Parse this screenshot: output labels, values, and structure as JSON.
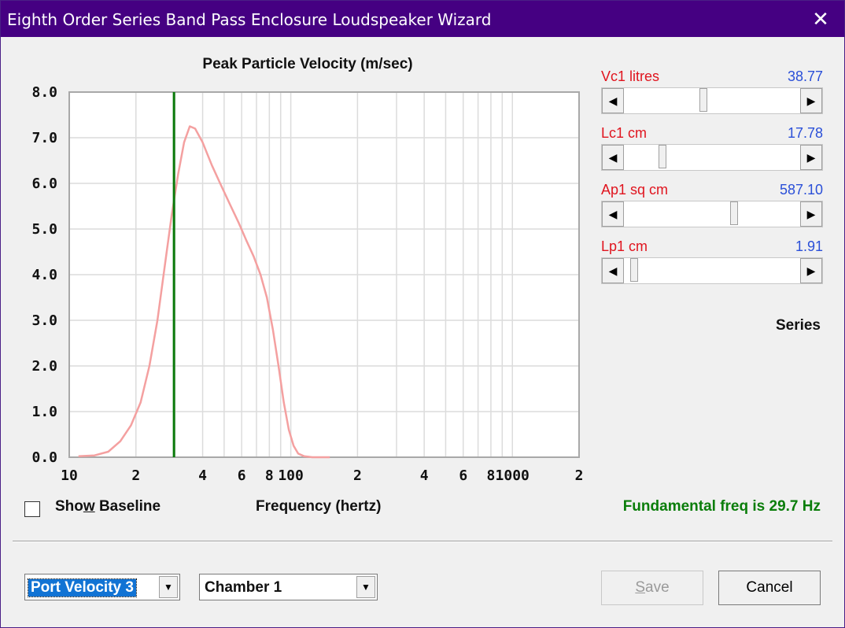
{
  "window": {
    "title": "Eighth Order Series Band Pass Enclosure Loudspeaker Wizard",
    "close_glyph": "✕"
  },
  "chart_data": {
    "type": "line",
    "title": "Peak Particle Velocity (m/sec)",
    "xlabel": "Frequency (hertz)",
    "ylabel": "",
    "x_scale": "log",
    "xlim": [
      10,
      2000
    ],
    "ylim": [
      0,
      8
    ],
    "y_ticks": [
      "0.0",
      "1.0",
      "2.0",
      "3.0",
      "4.0",
      "5.0",
      "6.0",
      "7.0",
      "8.0"
    ],
    "x_ticks": [
      {
        "value": 10,
        "label": "10"
      },
      {
        "value": 20,
        "label": "2"
      },
      {
        "value": 40,
        "label": "4"
      },
      {
        "value": 60,
        "label": "6"
      },
      {
        "value": 80,
        "label": "8"
      },
      {
        "value": 100,
        "label": "100"
      },
      {
        "value": 200,
        "label": "2"
      },
      {
        "value": 400,
        "label": "4"
      },
      {
        "value": 600,
        "label": "6"
      },
      {
        "value": 800,
        "label": "8"
      },
      {
        "value": 1000,
        "label": "1000"
      },
      {
        "value": 2000,
        "label": "2"
      }
    ],
    "grid": true,
    "marker_line": {
      "x": 29.7,
      "color": "#0a7a0a"
    },
    "series": [
      {
        "color": "#f4a0a0",
        "points": [
          [
            11,
            0.02
          ],
          [
            13,
            0.04
          ],
          [
            15,
            0.12
          ],
          [
            17,
            0.35
          ],
          [
            19,
            0.7
          ],
          [
            21,
            1.2
          ],
          [
            23,
            2.0
          ],
          [
            25,
            3.0
          ],
          [
            27,
            4.2
          ],
          [
            29,
            5.3
          ],
          [
            31,
            6.2
          ],
          [
            33,
            6.9
          ],
          [
            35,
            7.25
          ],
          [
            37,
            7.2
          ],
          [
            40,
            6.9
          ],
          [
            44,
            6.4
          ],
          [
            48,
            6.0
          ],
          [
            53,
            5.55
          ],
          [
            58,
            5.15
          ],
          [
            63,
            4.75
          ],
          [
            68,
            4.4
          ],
          [
            73,
            4.0
          ],
          [
            78,
            3.5
          ],
          [
            83,
            2.8
          ],
          [
            88,
            2.0
          ],
          [
            93,
            1.2
          ],
          [
            98,
            0.6
          ],
          [
            103,
            0.25
          ],
          [
            108,
            0.08
          ],
          [
            115,
            0.02
          ],
          [
            125,
            0.0
          ],
          [
            150,
            0.0
          ]
        ]
      }
    ]
  },
  "sliders": [
    {
      "label": "Vc1  litres",
      "value": "38.77",
      "position": 0.45
    },
    {
      "label": "Lc1  cm",
      "value": "17.78",
      "position": 0.21
    },
    {
      "label": "Ap1  sq cm",
      "value": "587.10",
      "position": 0.63
    },
    {
      "label": "Lp1  cm",
      "value": "1.91",
      "position": 0.04
    }
  ],
  "series_label": "Series",
  "fundamental": "Fundamental freq is 29.7 Hz",
  "show_baseline": {
    "label_before": "Sho",
    "label_underline": "w",
    "label_after": " Baseline",
    "checked": false
  },
  "dropdowns": [
    {
      "value": "Port Velocity 3"
    },
    {
      "value": "Chamber 1"
    }
  ],
  "buttons": {
    "save": {
      "label_underline": "S",
      "label_after": "ave",
      "enabled": false
    },
    "cancel": {
      "label": "Cancel"
    }
  }
}
